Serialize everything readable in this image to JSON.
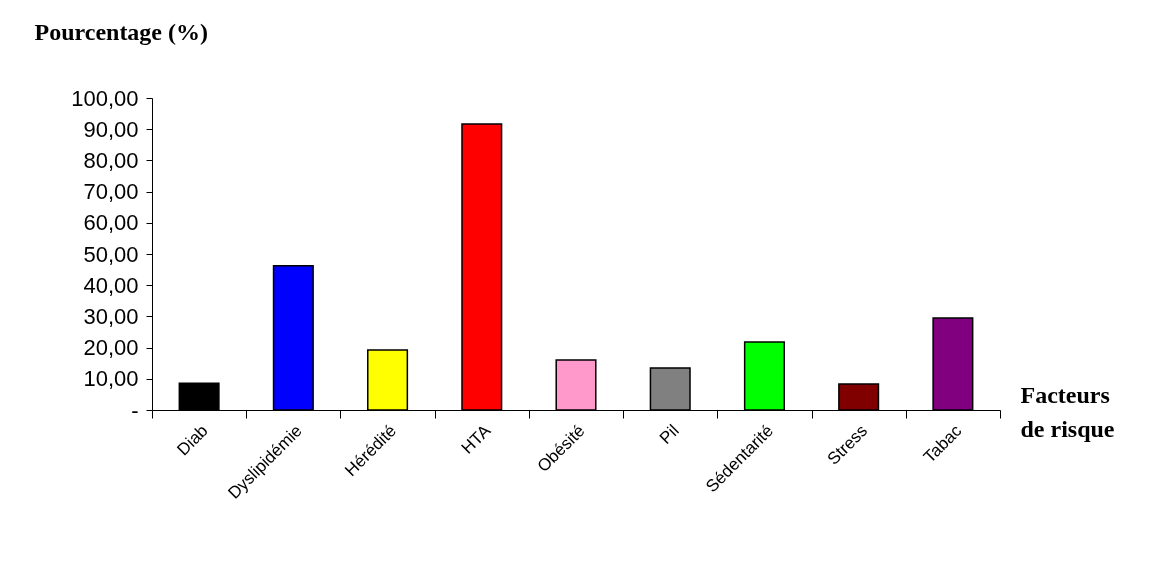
{
  "chart_data": {
    "type": "bar",
    "xlabel": "Facteurs de risque",
    "ylabel": "Pourcentage (%)",
    "categories": [
      "Diab",
      "Dyslipidémie",
      "Hérédité",
      "HTA",
      "Obésité",
      "Pil",
      "Sédentarité",
      "Stress",
      "Tabac"
    ],
    "values": [
      8.6,
      46.2,
      19.2,
      91.7,
      16.0,
      13.5,
      21.8,
      8.3,
      29.5
    ],
    "colors": [
      "#000000",
      "#0000ff",
      "#ffff00",
      "#ff0000",
      "#ff99cc",
      "#808080",
      "#00ff00",
      "#800000",
      "#800080"
    ],
    "ylim": [
      0,
      100
    ],
    "yticks": [
      {
        "value": 0,
        "label": "-"
      },
      {
        "value": 10,
        "label": "10,00"
      },
      {
        "value": 20,
        "label": "20,00"
      },
      {
        "value": 30,
        "label": "30,00"
      },
      {
        "value": 40,
        "label": "40,00"
      },
      {
        "value": 50,
        "label": "50,00"
      },
      {
        "value": 60,
        "label": "60,00"
      },
      {
        "value": 70,
        "label": "70,00"
      },
      {
        "value": 80,
        "label": "80,00"
      },
      {
        "value": 90,
        "label": "90,00"
      },
      {
        "value": 100,
        "label": "100,00"
      }
    ],
    "grid": false,
    "legend": false
  }
}
